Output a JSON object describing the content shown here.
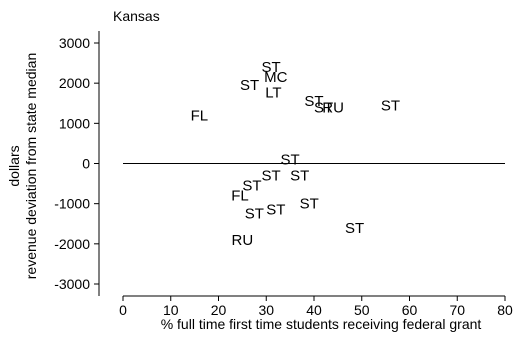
{
  "chart_data": {
    "type": "scatter",
    "title": "Kansas",
    "xlabel": "% full time first time students receiving federal grant",
    "ylabel_lines": [
      "dollars",
      "revenue deviation from state median"
    ],
    "xlim": [
      0,
      80
    ],
    "ylim": [
      -3000,
      3000
    ],
    "xticks": [
      0,
      10,
      20,
      30,
      40,
      50,
      60,
      70,
      80
    ],
    "yticks": [
      -3000,
      -2000,
      -1000,
      0,
      1000,
      2000,
      3000
    ],
    "reference_line_y": 0,
    "grid": false,
    "points": [
      {
        "label": "FL",
        "x": 16,
        "y": 1200
      },
      {
        "label": "ST",
        "x": 26.5,
        "y": 1950
      },
      {
        "label": "ST",
        "x": 31,
        "y": 2400
      },
      {
        "label": "MC",
        "x": 32,
        "y": 2150
      },
      {
        "label": "LT",
        "x": 31.5,
        "y": 1770
      },
      {
        "label": "ST",
        "x": 40,
        "y": 1550
      },
      {
        "label": "ST",
        "x": 42,
        "y": 1400
      },
      {
        "label": "RU",
        "x": 44,
        "y": 1400
      },
      {
        "label": "ST",
        "x": 56,
        "y": 1450
      },
      {
        "label": "ST",
        "x": 35,
        "y": 100
      },
      {
        "label": "ST",
        "x": 31,
        "y": -300
      },
      {
        "label": "ST",
        "x": 37,
        "y": -300
      },
      {
        "label": "ST",
        "x": 27,
        "y": -550
      },
      {
        "label": "FL",
        "x": 24.5,
        "y": -800
      },
      {
        "label": "ST",
        "x": 39,
        "y": -1000
      },
      {
        "label": "ST",
        "x": 32,
        "y": -1150
      },
      {
        "label": "ST",
        "x": 27.5,
        "y": -1250
      },
      {
        "label": "ST",
        "x": 48.5,
        "y": -1600
      },
      {
        "label": "RU",
        "x": 25,
        "y": -1900
      }
    ]
  }
}
